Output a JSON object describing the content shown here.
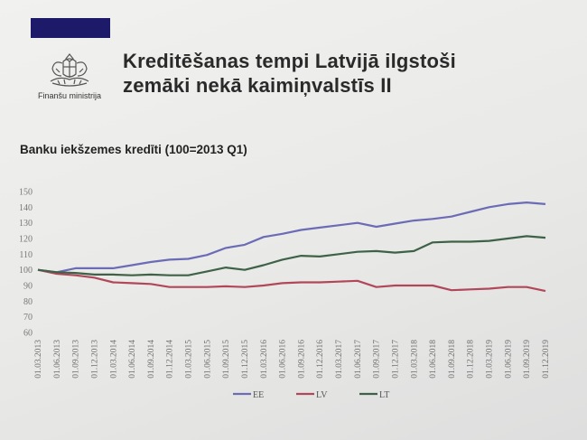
{
  "header": {
    "ministry_name": "Finanšu ministrija",
    "title_line1": "Kreditēšanas tempi Latvijā ilgstoši",
    "title_line2": "zemāki nekā kaimiņvalstīs II"
  },
  "chart_data": {
    "type": "line",
    "title": "Banku iekšzemes kredīti (100=2013 Q1)",
    "ylim": [
      60,
      150
    ],
    "yticks": [
      60,
      70,
      80,
      90,
      100,
      110,
      120,
      130,
      140,
      150
    ],
    "legend_position": "bottom",
    "grid": false,
    "categories": [
      "01.03.2013",
      "01.06.2013",
      "01.09.2013",
      "01.12.2013",
      "01.03.2014",
      "01.06.2014",
      "01.09.2014",
      "01.12.2014",
      "01.03.2015",
      "01.06.2015",
      "01.09.2015",
      "01.12.2015",
      "01.03.2016",
      "01.06.2016",
      "01.09.2016",
      "01.12.2016",
      "01.03.2017",
      "01.06.2017",
      "01.09.2017",
      "01.12.2017",
      "01.03.2018",
      "01.06.2018",
      "01.09.2018",
      "01.12.2018",
      "01.03.2019",
      "01.06.2019",
      "01.09.2019",
      "01.12.2019"
    ],
    "series": [
      {
        "name": "EE",
        "color": "#6b6bb6",
        "values": [
          100,
          98.5,
          101,
          101,
          101,
          103,
          105,
          106.5,
          107,
          109.5,
          114,
          116,
          121,
          123,
          125.5,
          127,
          128.5,
          130,
          127.5,
          129.5,
          131.5,
          132.5,
          134,
          137,
          140,
          142,
          143,
          142
        ]
      },
      {
        "name": "LV",
        "color": "#b0485a",
        "values": [
          100,
          97.5,
          96.5,
          95,
          92,
          91.5,
          91,
          89,
          89,
          89,
          89.5,
          89,
          90,
          91.5,
          92,
          92,
          92.5,
          93,
          89,
          90,
          90,
          90,
          87,
          87.5,
          88,
          89,
          89,
          86.5
        ]
      },
      {
        "name": "LT",
        "color": "#3e6247",
        "values": [
          100,
          98.5,
          98,
          97,
          97,
          96.5,
          97,
          96.5,
          96.5,
          99,
          101.5,
          100,
          103,
          106.5,
          109,
          108.5,
          110,
          111.5,
          112,
          111,
          112,
          117.5,
          118,
          118,
          118.5,
          120,
          121.5,
          120.5
        ]
      }
    ]
  }
}
